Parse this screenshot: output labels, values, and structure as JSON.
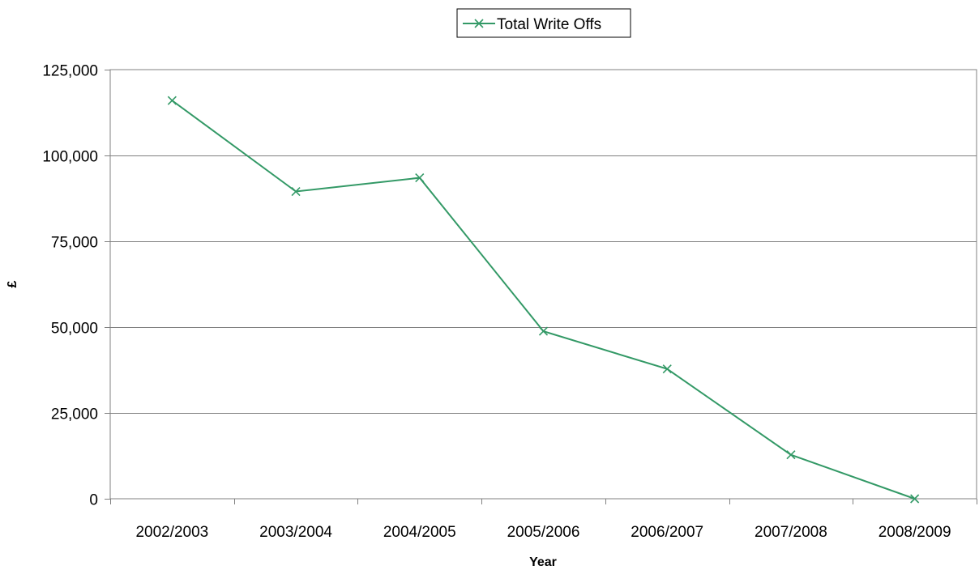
{
  "chart_data": {
    "type": "line",
    "title": "",
    "xlabel": "Year",
    "ylabel": "£",
    "categories": [
      "2002/2003",
      "2003/2004",
      "2004/2005",
      "2005/2006",
      "2006/2007",
      "2007/2008",
      "2008/2009"
    ],
    "series": [
      {
        "name": "Total Write Offs",
        "color": "#339966",
        "marker": "x",
        "values": [
          116000,
          89500,
          93500,
          48800,
          37800,
          12800,
          0
        ]
      }
    ],
    "ylim": [
      0,
      125000
    ],
    "yticks": [
      0,
      25000,
      50000,
      75000,
      100000,
      125000
    ],
    "ytick_labels": [
      "0",
      "25,000",
      "50,000",
      "75,000",
      "100,000",
      "125,000"
    ],
    "grid": true,
    "legend_position": "top-center"
  }
}
